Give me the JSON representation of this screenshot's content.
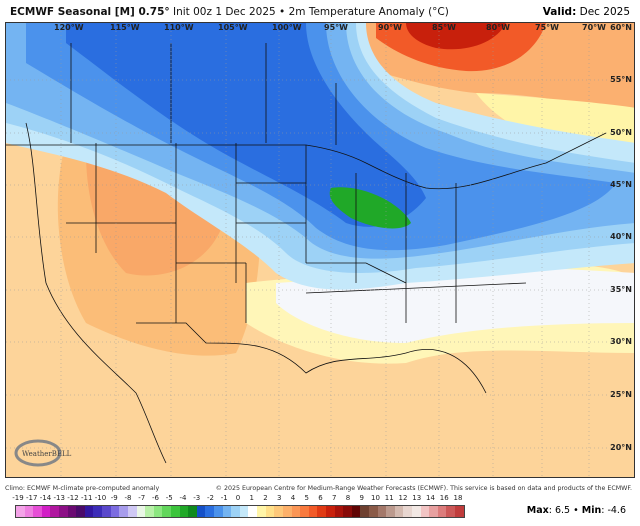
{
  "header": {
    "model": "ECMWF Seasonal [M] 0.75",
    "deg": "°",
    "init": " Init 00z 1 Dec 2025 • 2m Temperature Anomaly (°C)",
    "valid_label": "Valid:",
    "valid_value": " Dec 2025"
  },
  "lon_labels": [
    "120°W",
    "115°W",
    "110°W",
    "105°W",
    "100°W",
    "95°W",
    "90°W",
    "85°W",
    "80°W",
    "75°W",
    "70°W"
  ],
  "lat_labels": [
    "60°N",
    "55°N",
    "50°N",
    "45°N",
    "40°N",
    "35°N",
    "30°N",
    "25°N",
    "20°N"
  ],
  "footer": {
    "climo": "Climo: ECMWF M-climate pre-computed anomaly",
    "copyright": "© 2025 European Centre for Medium-Range Weather Forecasts (ECMWF). This service is based on data and products of the ECMWF."
  },
  "logo_text": "WeatherBELL",
  "colorbar": {
    "labels": [
      "-19",
      "-17",
      "-14",
      "-13",
      "-12",
      "-11",
      "-10",
      "-9",
      "-8",
      "-7",
      "-6",
      "-5",
      "-4",
      "-3",
      "-2",
      "-1",
      "0",
      "1",
      "2",
      "3",
      "4",
      "5",
      "6",
      "7",
      "8",
      "9",
      "10",
      "11",
      "12",
      "13",
      "14",
      "16",
      "18"
    ],
    "colors": [
      "#f4a3e8",
      "#ee7fe0",
      "#e64fd6",
      "#d21fc6",
      "#b0169f",
      "#8c0f86",
      "#6a0a72",
      "#4a0a6a",
      "#3217a0",
      "#3c2cb8",
      "#5a48cc",
      "#7c6ce0",
      "#a79cec",
      "#cfc8f4",
      "#eaf6e6",
      "#b8f0a8",
      "#8ce680",
      "#62d65c",
      "#3cc43c",
      "#20a828",
      "#0f8a1e",
      "#1550c8",
      "#2a6ee0",
      "#4b92ec",
      "#74b4f2",
      "#9dd2f6",
      "#c4e8fa",
      "#ffffff",
      "#fff5a8",
      "#ffe08a",
      "#fdc87a",
      "#fcb06a",
      "#fb9656",
      "#f97a3e",
      "#f25a28",
      "#e03a14",
      "#c8200c",
      "#a8120a",
      "#880a08",
      "#600404",
      "#6e4030",
      "#8a5a48",
      "#a4786a",
      "#bc9a8e",
      "#d4bab0",
      "#e8d6d0",
      "#f2e8e4",
      "#f2c4c4",
      "#e8a0a0",
      "#dc7c7c",
      "#cc5858",
      "#c03c3c"
    ]
  },
  "stats": {
    "max_label": "Max",
    "max_value": "6.5",
    "sep": " • ",
    "min_label": "Min",
    "min_value": "-4.6"
  }
}
